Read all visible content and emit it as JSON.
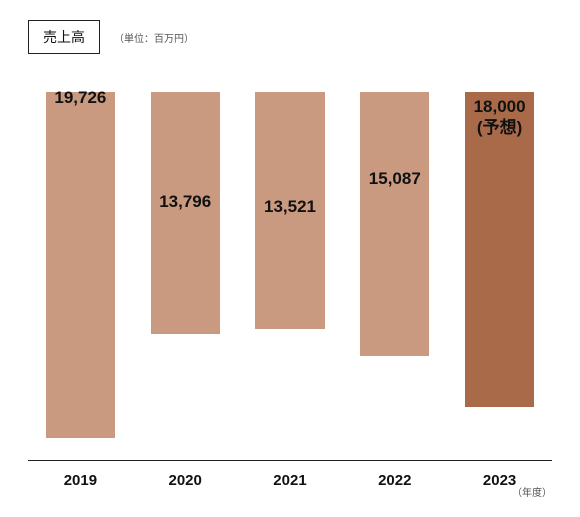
{
  "chart": {
    "type": "bar",
    "title": "売上高",
    "unit_note": "（単位：百万円）",
    "x_axis_caption": "（年度）",
    "categories": [
      "2019",
      "2020",
      "2021",
      "2022",
      "2023"
    ],
    "values": [
      19726,
      13796,
      13521,
      15087,
      18000
    ],
    "value_labels": [
      "19,726",
      "13,796",
      "13,521",
      "15,087",
      "18,000\n(予想)"
    ],
    "bar_colors": [
      "#c99980",
      "#c99980",
      "#c99980",
      "#c99980",
      "#a96a49"
    ],
    "ylim": [
      0,
      21000
    ],
    "label_fontsize": 17,
    "tick_fontsize": 15,
    "title_fontsize": 14,
    "unit_fontsize": 10,
    "bar_width": 0.66,
    "background_color": "#ffffff",
    "axis_color": "#222222",
    "label_color": "#111111"
  }
}
